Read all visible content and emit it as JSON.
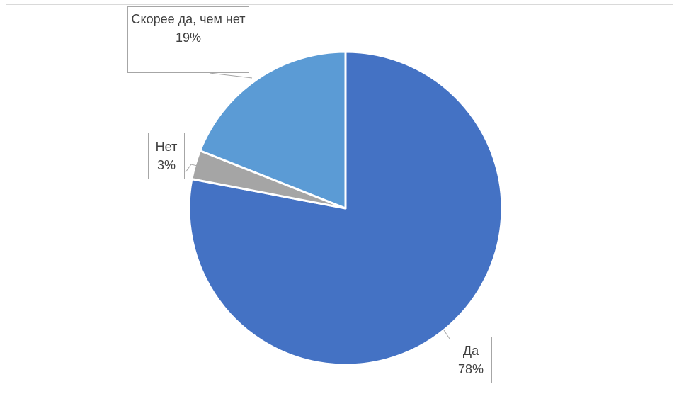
{
  "chart_data": {
    "type": "pie",
    "title": "",
    "slices": [
      {
        "label": "Да",
        "value": 78,
        "value_label": "78%",
        "color": "#4472C4"
      },
      {
        "label": "Нет",
        "value": 3,
        "value_label": "3%",
        "color": "#A5A5A5"
      },
      {
        "label": "Скорее да, чем нет",
        "value": 19,
        "value_label": "19%",
        "color": "#5B9BD5"
      }
    ],
    "start_angle_deg": 0,
    "direction": "clockwise",
    "legend": "none"
  }
}
